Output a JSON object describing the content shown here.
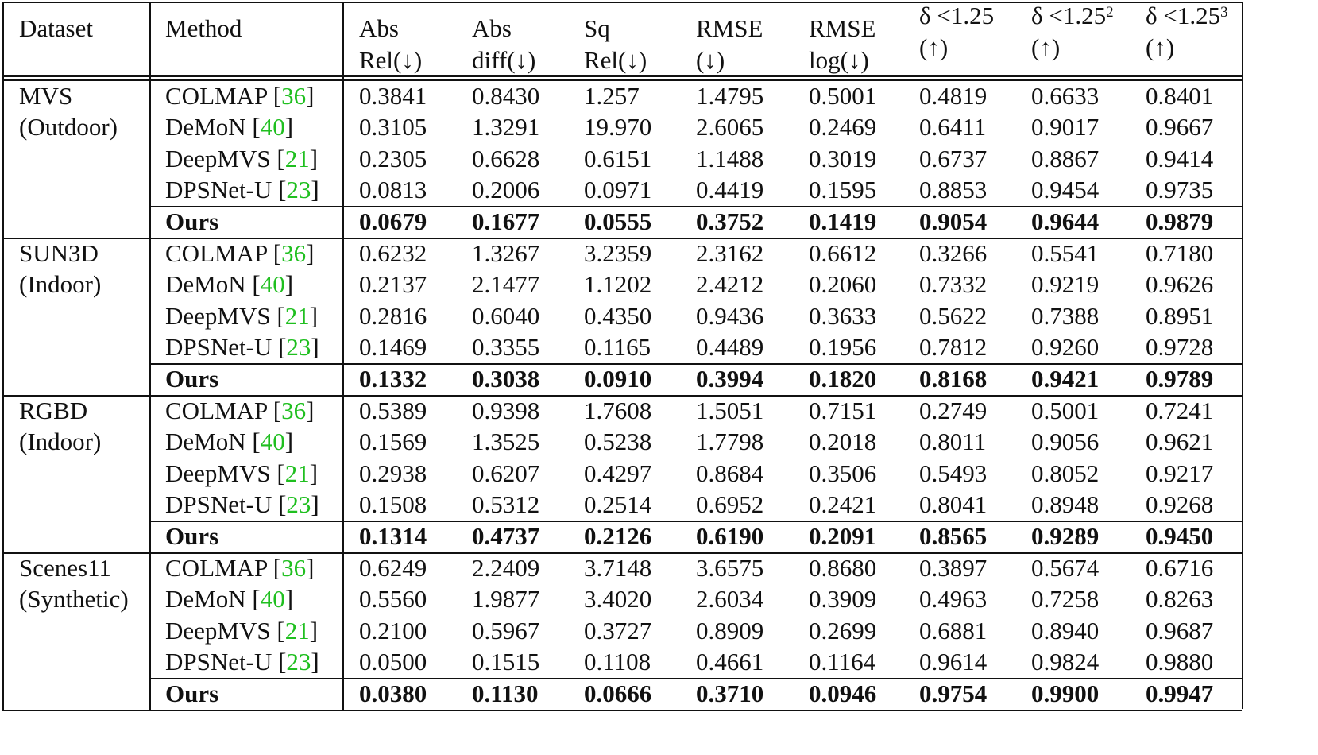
{
  "table": {
    "headers": [
      {
        "line1": "Dataset",
        "line2": ""
      },
      {
        "line1": "Method",
        "line2": ""
      },
      {
        "line1": "Abs",
        "line2": "Rel(↓)"
      },
      {
        "line1": "Abs",
        "line2": "diff(↓)"
      },
      {
        "line1": "Sq",
        "line2": "Rel(↓)"
      },
      {
        "line1": "RMSE",
        "line2": "(↓)"
      },
      {
        "line1": "RMSE",
        "line2": "log(↓)"
      },
      {
        "line1": "δ <1.25",
        "sup": "",
        "line2": "(↑)"
      },
      {
        "line1": "δ <1.25",
        "sup": "2",
        "line2": "(↑)"
      },
      {
        "line1": "δ <1.25",
        "sup": "3",
        "line2": "(↑)"
      }
    ],
    "groups": [
      {
        "dataset": [
          "MVS",
          "(Outdoor)"
        ],
        "rows": [
          {
            "method": "COLMAP",
            "ref": "36",
            "values": [
              "0.3841",
              "0.8430",
              "1.257",
              "1.4795",
              "0.5001",
              "0.4819",
              "0.6633",
              "0.8401"
            ]
          },
          {
            "method": "DeMoN",
            "ref": "40",
            "values": [
              "0.3105",
              "1.3291",
              "19.970",
              "2.6065",
              "0.2469",
              "0.6411",
              "0.9017",
              "0.9667"
            ]
          },
          {
            "method": "DeepMVS",
            "ref": "21",
            "values": [
              "0.2305",
              "0.6628",
              "0.6151",
              "1.1488",
              "0.3019",
              "0.6737",
              "0.8867",
              "0.9414"
            ]
          },
          {
            "method": "DPSNet-U",
            "ref": "23",
            "values": [
              "0.0813",
              "0.2006",
              "0.0971",
              "0.4419",
              "0.1595",
              "0.8853",
              "0.9454",
              "0.9735"
            ]
          },
          {
            "method": "Ours",
            "ref": "",
            "bold": true,
            "values": [
              "0.0679",
              "0.1677",
              "0.0555",
              "0.3752",
              "0.1419",
              "0.9054",
              "0.9644",
              "0.9879"
            ]
          }
        ]
      },
      {
        "dataset": [
          "SUN3D",
          "(Indoor)"
        ],
        "rows": [
          {
            "method": "COLMAP",
            "ref": "36",
            "values": [
              "0.6232",
              "1.3267",
              "3.2359",
              "2.3162",
              "0.6612",
              "0.3266",
              "0.5541",
              "0.7180"
            ]
          },
          {
            "method": "DeMoN",
            "ref": "40",
            "values": [
              "0.2137",
              "2.1477",
              "1.1202",
              "2.4212",
              "0.2060",
              "0.7332",
              "0.9219",
              "0.9626"
            ]
          },
          {
            "method": "DeepMVS",
            "ref": "21",
            "values": [
              "0.2816",
              "0.6040",
              "0.4350",
              "0.9436",
              "0.3633",
              "0.5622",
              "0.7388",
              "0.8951"
            ]
          },
          {
            "method": "DPSNet-U",
            "ref": "23",
            "values": [
              "0.1469",
              "0.3355",
              "0.1165",
              "0.4489",
              "0.1956",
              "0.7812",
              "0.9260",
              "0.9728"
            ]
          },
          {
            "method": "Ours",
            "ref": "",
            "bold": true,
            "values": [
              "0.1332",
              "0.3038",
              "0.0910",
              "0.3994",
              "0.1820",
              "0.8168",
              "0.9421",
              "0.9789"
            ]
          }
        ]
      },
      {
        "dataset": [
          "RGBD",
          "(Indoor)"
        ],
        "rows": [
          {
            "method": "COLMAP",
            "ref": "36",
            "values": [
              "0.5389",
              "0.9398",
              "1.7608",
              "1.5051",
              "0.7151",
              "0.2749",
              "0.5001",
              "0.7241"
            ]
          },
          {
            "method": "DeMoN",
            "ref": "40",
            "values": [
              "0.1569",
              "1.3525",
              "0.5238",
              "1.7798",
              "0.2018",
              "0.8011",
              "0.9056",
              "0.9621"
            ]
          },
          {
            "method": "DeepMVS",
            "ref": "21",
            "values": [
              "0.2938",
              "0.6207",
              "0.4297",
              "0.8684",
              "0.3506",
              "0.5493",
              "0.8052",
              "0.9217"
            ]
          },
          {
            "method": "DPSNet-U",
            "ref": "23",
            "values": [
              "0.1508",
              "0.5312",
              "0.2514",
              "0.6952",
              "0.2421",
              "0.8041",
              "0.8948",
              "0.9268"
            ]
          },
          {
            "method": "Ours",
            "ref": "",
            "bold": true,
            "values": [
              "0.1314",
              "0.4737",
              "0.2126",
              "0.6190",
              "0.2091",
              "0.8565",
              "0.9289",
              "0.9450"
            ]
          }
        ]
      },
      {
        "dataset": [
          "Scenes11",
          "(Synthetic)"
        ],
        "rows": [
          {
            "method": "COLMAP",
            "ref": "36",
            "values": [
              "0.6249",
              "2.2409",
              "3.7148",
              "3.6575",
              "0.8680",
              "0.3897",
              "0.5674",
              "0.6716"
            ]
          },
          {
            "method": "DeMoN",
            "ref": "40",
            "values": [
              "0.5560",
              "1.9877",
              "3.4020",
              "2.6034",
              "0.3909",
              "0.4963",
              "0.7258",
              "0.8263"
            ]
          },
          {
            "method": "DeepMVS",
            "ref": "21",
            "values": [
              "0.2100",
              "0.5967",
              "0.3727",
              "0.8909",
              "0.2699",
              "0.6881",
              "0.8940",
              "0.9687"
            ]
          },
          {
            "method": "DPSNet-U",
            "ref": "23",
            "values": [
              "0.0500",
              "0.1515",
              "0.1108",
              "0.4661",
              "0.1164",
              "0.9614",
              "0.9824",
              "0.9880"
            ]
          },
          {
            "method": "Ours",
            "ref": "",
            "bold": true,
            "values": [
              "0.0380",
              "0.1130",
              "0.0666",
              "0.3710",
              "0.0946",
              "0.9754",
              "0.9900",
              "0.9947"
            ]
          }
        ]
      }
    ]
  },
  "colors": {
    "text": "#111111",
    "ref_link": "#1fbf1f",
    "rule": "#111111"
  }
}
